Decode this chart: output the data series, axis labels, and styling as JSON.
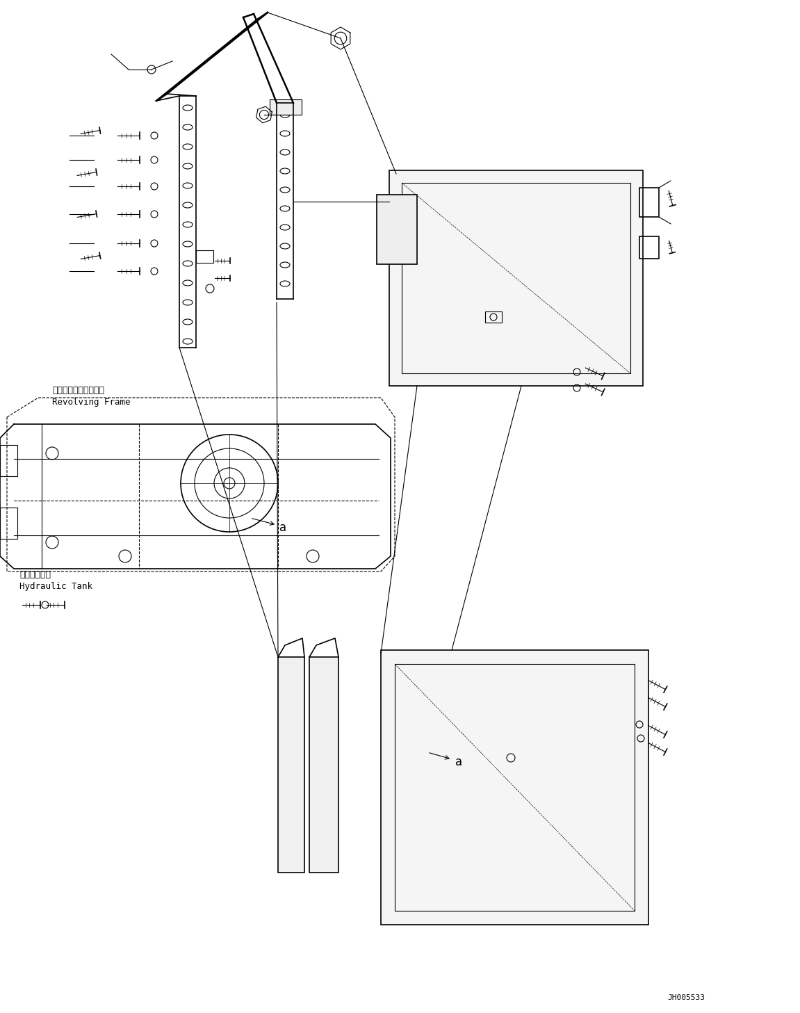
{
  "bg_color": "#ffffff",
  "line_color": "#000000",
  "fig_width": 11.51,
  "fig_height": 14.57,
  "dpi": 100,
  "watermark": "JH005533",
  "label_revolving": [
    "レボルビングフレーム",
    "Revolving Frame"
  ],
  "label_hydraulic": [
    "作動油タンク",
    "Hydraulic Tank"
  ],
  "label_a1": "a",
  "label_a2": "a"
}
